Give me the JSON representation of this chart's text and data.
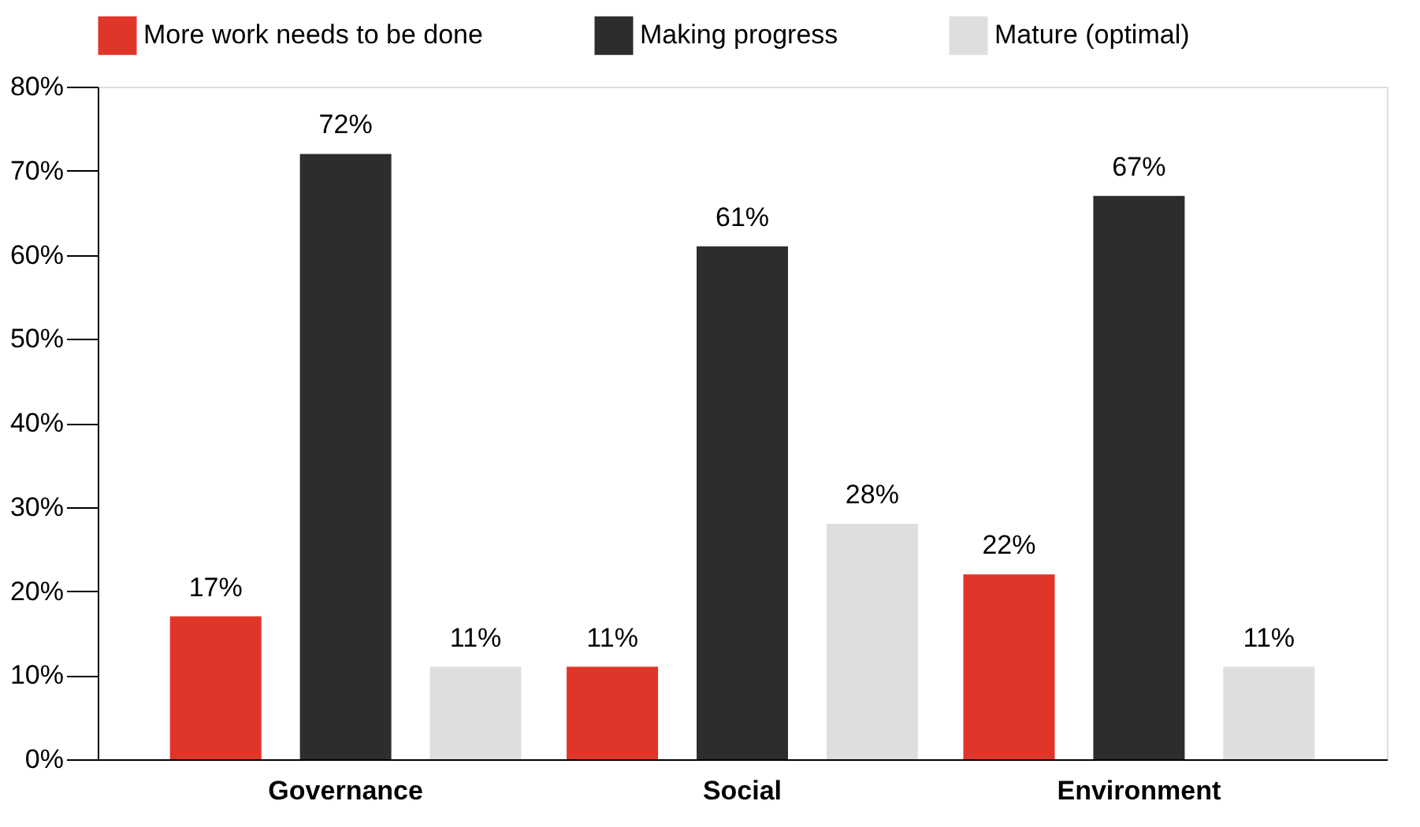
{
  "chart_data": {
    "type": "bar",
    "categories": [
      "Governance",
      "Social",
      "Environment"
    ],
    "series": [
      {
        "name": "More work needs to be done",
        "color": "#e0362a",
        "values": [
          17,
          11,
          22
        ]
      },
      {
        "name": "Making progress",
        "color": "#2d2d2d",
        "values": [
          72,
          61,
          67
        ]
      },
      {
        "name": "Mature (optimal)",
        "color": "#dedede",
        "values": [
          11,
          28,
          11
        ]
      }
    ],
    "ylim": [
      0,
      80
    ],
    "yticks": [
      {
        "value": 0,
        "label": "0%"
      },
      {
        "value": 10,
        "label": "10%"
      },
      {
        "value": 20,
        "label": "20%"
      },
      {
        "value": 30,
        "label": "30%"
      },
      {
        "value": 40,
        "label": "40%"
      },
      {
        "value": 50,
        "label": "50%"
      },
      {
        "value": 60,
        "label": "60%"
      },
      {
        "value": 70,
        "label": "70%"
      },
      {
        "value": 80,
        "label": "80%"
      }
    ],
    "value_labels": [
      [
        "17%",
        "11%",
        "22%"
      ],
      [
        "72%",
        "61%",
        "67%"
      ],
      [
        "11%",
        "28%",
        "11%"
      ]
    ],
    "grid": false,
    "legend": "top"
  }
}
